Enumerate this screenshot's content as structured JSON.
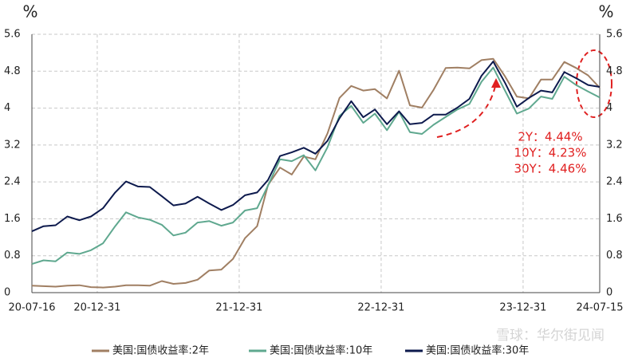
{
  "chart_data": {
    "type": "line",
    "y_axis_label": "%",
    "y2_axis_label": "%",
    "x": [
      "20-07-16",
      "20-08-15",
      "20-09-15",
      "20-10-15",
      "20-11-15",
      "20-12-15",
      "21-01-15",
      "21-02-15",
      "21-03-15",
      "21-04-15",
      "21-05-15",
      "21-06-15",
      "21-07-15",
      "21-08-15",
      "21-09-15",
      "21-10-15",
      "21-11-15",
      "21-12-15",
      "22-01-15",
      "22-02-15",
      "22-03-15",
      "22-04-15",
      "22-05-15",
      "22-06-15",
      "22-07-15",
      "22-08-15",
      "22-09-15",
      "22-10-15",
      "22-11-15",
      "22-12-15",
      "23-01-15",
      "23-02-15",
      "23-03-15",
      "23-04-15",
      "23-05-15",
      "23-06-15",
      "23-07-15",
      "23-08-15",
      "23-09-15",
      "23-10-15",
      "23-11-15",
      "23-12-15",
      "24-01-15",
      "24-02-15",
      "24-03-15",
      "24-04-15",
      "24-05-15",
      "24-06-15",
      "24-07-15"
    ],
    "xlim": [
      "20-07-16",
      "24-07-15"
    ],
    "xticks": [
      "20-07-16",
      "20-12-31",
      "21-12-31",
      "22-12-31",
      "23-12-31",
      "24-07-15"
    ],
    "ylim": [
      0,
      5.6
    ],
    "yticks": [
      0,
      0.8,
      1.6,
      2.4,
      3.2,
      4,
      4.8,
      5.6
    ],
    "y2lim": [
      0,
      5.6
    ],
    "y2ticks": [
      0,
      0.8,
      1.6,
      2.4,
      3.2,
      4,
      4.8,
      5.6
    ],
    "grid": true,
    "series": [
      {
        "name": "美国:国债收益率:2年",
        "color": "#a07f63",
        "values": [
          0.15,
          0.14,
          0.13,
          0.15,
          0.16,
          0.12,
          0.11,
          0.13,
          0.16,
          0.16,
          0.15,
          0.25,
          0.19,
          0.21,
          0.28,
          0.48,
          0.5,
          0.73,
          1.18,
          1.44,
          2.33,
          2.71,
          2.56,
          2.95,
          2.89,
          3.45,
          4.22,
          4.48,
          4.38,
          4.41,
          4.21,
          4.81,
          4.06,
          4.01,
          4.4,
          4.87,
          4.88,
          4.86,
          5.04,
          5.07,
          4.68,
          4.25,
          4.21,
          4.62,
          4.62,
          5.0,
          4.87,
          4.71,
          4.44
        ]
      },
      {
        "name": "美国:国债收益率:10年",
        "color": "#5fa88f",
        "values": [
          0.62,
          0.7,
          0.68,
          0.87,
          0.84,
          0.92,
          1.07,
          1.44,
          1.74,
          1.63,
          1.58,
          1.47,
          1.24,
          1.3,
          1.52,
          1.55,
          1.45,
          1.52,
          1.78,
          1.83,
          2.32,
          2.89,
          2.85,
          2.98,
          2.65,
          3.15,
          3.83,
          4.05,
          3.68,
          3.88,
          3.52,
          3.92,
          3.48,
          3.44,
          3.64,
          3.81,
          3.97,
          4.09,
          4.57,
          4.88,
          4.37,
          3.88,
          3.99,
          4.25,
          4.2,
          4.68,
          4.5,
          4.36,
          4.23
        ]
      },
      {
        "name": "美国:国债收益率:30年",
        "color": "#0d1a4d",
        "values": [
          1.33,
          1.44,
          1.46,
          1.65,
          1.57,
          1.65,
          1.83,
          2.17,
          2.41,
          2.3,
          2.29,
          2.09,
          1.89,
          1.93,
          2.08,
          1.93,
          1.79,
          1.9,
          2.11,
          2.17,
          2.44,
          2.96,
          3.04,
          3.14,
          3.01,
          3.29,
          3.78,
          4.15,
          3.8,
          3.97,
          3.65,
          3.93,
          3.65,
          3.68,
          3.86,
          3.86,
          4.01,
          4.2,
          4.7,
          5.01,
          4.54,
          4.03,
          4.22,
          4.38,
          4.34,
          4.78,
          4.65,
          4.5,
          4.46
        ]
      }
    ],
    "annotations": [
      "2Y：4.44%",
      "10Y：4.23%",
      "30Y：4.46%"
    ],
    "watermark": "雪球：华尔街见闻"
  }
}
